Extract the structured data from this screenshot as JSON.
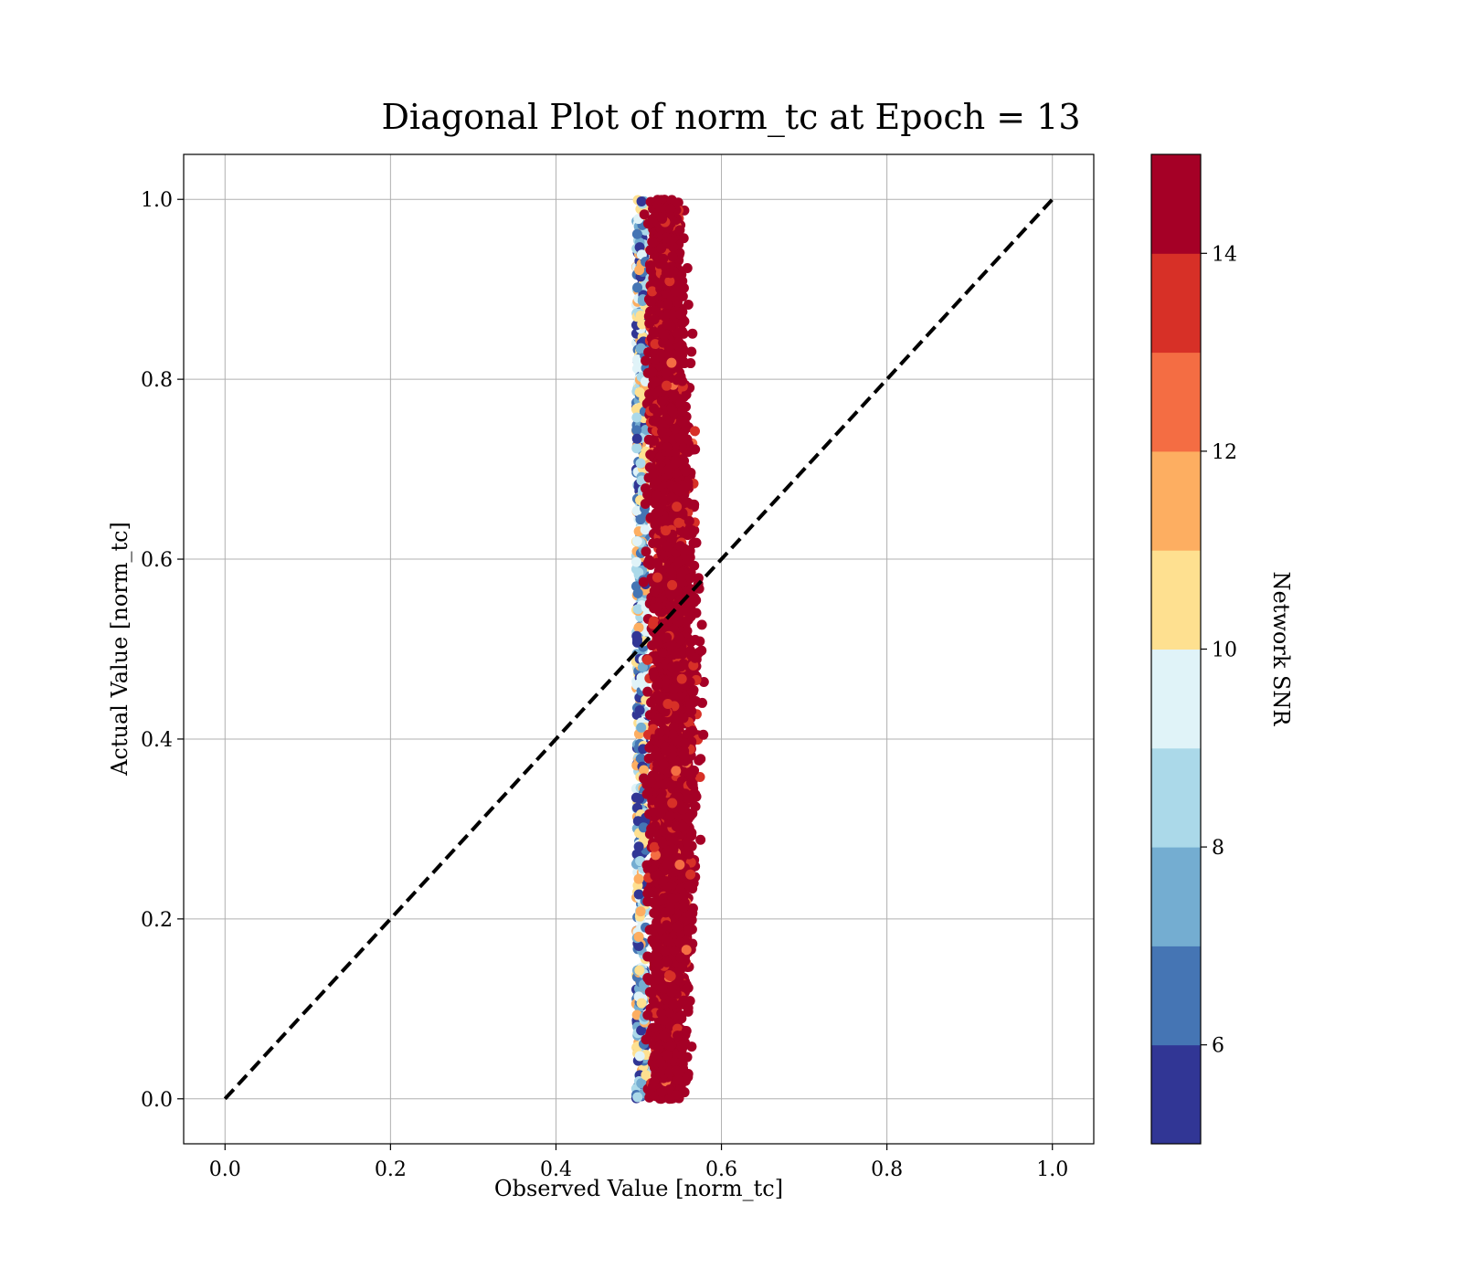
{
  "chart_data": {
    "type": "scatter",
    "title": "Diagonal Plot of norm_tc at Epoch = 13",
    "xlabel": "Observed Value [norm_tc]",
    "ylabel": "Actual Value [norm_tc]",
    "xlim": [
      -0.05,
      1.05
    ],
    "ylim": [
      -0.05,
      1.05
    ],
    "grid": true,
    "x_ticks": [
      "0.0",
      "0.2",
      "0.4",
      "0.6",
      "0.8",
      "1.0"
    ],
    "y_ticks": [
      "0.0",
      "0.2",
      "0.4",
      "0.6",
      "0.8",
      "1.0"
    ],
    "reference_line": {
      "style": "dashed",
      "color": "#000000",
      "from": [
        0,
        0
      ],
      "to": [
        1,
        1
      ]
    },
    "point_cloud": {
      "description_x_center": 0.525,
      "x_spread_low": 0.497,
      "x_spread_high_top": 0.56,
      "x_spread_high_mid": 0.585,
      "y_range": [
        0,
        1
      ],
      "dominant_snr": 15
    },
    "colorbar": {
      "label": "Network SNR",
      "range": [
        5,
        15
      ],
      "tick_labels": [
        "6",
        "8",
        "10",
        "12",
        "14"
      ],
      "tick_values": [
        6,
        8,
        10,
        12,
        14
      ],
      "colors": [
        "#313695",
        "#4575b4",
        "#74add1",
        "#abd9e9",
        "#e0f3f8",
        "#fee090",
        "#fdae61",
        "#f46d43",
        "#d73027",
        "#a50026"
      ]
    }
  }
}
